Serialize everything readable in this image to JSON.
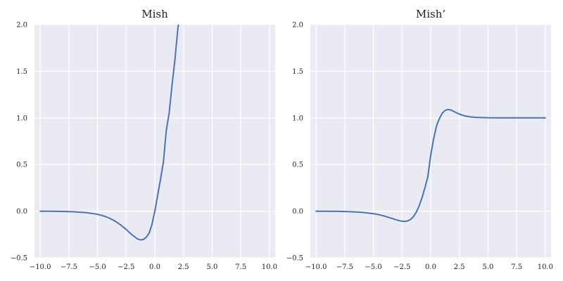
{
  "chart_data": [
    {
      "type": "line",
      "title": "Mish",
      "xlabel": "",
      "ylabel": "",
      "xlim": [
        -10.5,
        10.5
      ],
      "ylim": [
        -0.5,
        2.0
      ],
      "grid": true,
      "x_ticks": [
        -10.0,
        -7.5,
        -5.0,
        -2.5,
        0.0,
        2.5,
        5.0,
        7.5,
        10.0
      ],
      "x_tick_labels": [
        "−10.0",
        "−7.5",
        "−5.0",
        "−2.5",
        "0.0",
        "2.5",
        "5.0",
        "7.5",
        "10.0"
      ],
      "y_ticks": [
        -0.5,
        0.0,
        0.5,
        1.0,
        1.5,
        2.0
      ],
      "y_tick_labels": [
        "−0.5",
        "0.0",
        "0.5",
        "1.0",
        "1.5",
        "2.0"
      ],
      "series": [
        {
          "color": "#4c72b0",
          "x": [
            -10,
            -9,
            -8,
            -7,
            -6,
            -5,
            -4.5,
            -4,
            -3.5,
            -3,
            -2.5,
            -2,
            -1.5,
            -1.25,
            -1,
            -0.75,
            -0.5,
            -0.25,
            0,
            0.25,
            0.5,
            0.75,
            1,
            1.25,
            1.5,
            1.75,
            2,
            2.25
          ],
          "y": [
            -0.0005,
            -0.0011,
            -0.0027,
            -0.0064,
            -0.0149,
            -0.0336,
            -0.0497,
            -0.0727,
            -0.1043,
            -0.1456,
            -0.1955,
            -0.2525,
            -0.298,
            -0.3076,
            -0.3034,
            -0.2793,
            -0.2361,
            -0.1426,
            0.0,
            0.1715,
            0.3442,
            0.5276,
            0.8651,
            1.0506,
            1.35,
            1.618,
            1.944,
            2.191
          ]
        }
      ]
    },
    {
      "type": "line",
      "title": "Mish’",
      "xlabel": "",
      "ylabel": "",
      "xlim": [
        -10.5,
        10.5
      ],
      "ylim": [
        -0.5,
        2.0
      ],
      "grid": true,
      "x_ticks": [
        -10.0,
        -7.5,
        -5.0,
        -2.5,
        0.0,
        2.5,
        5.0,
        7.5,
        10.0
      ],
      "x_tick_labels": [
        "−10.0",
        "−7.5",
        "−5.0",
        "−2.5",
        "0.0",
        "2.5",
        "5.0",
        "7.5",
        "10.0"
      ],
      "y_ticks": [
        -0.5,
        0.0,
        0.5,
        1.0,
        1.5,
        2.0
      ],
      "y_tick_labels": [
        "−0.5",
        "0.0",
        "0.5",
        "1.0",
        "1.5",
        "2.0"
      ],
      "series": [
        {
          "color": "#4c72b0",
          "x": [
            -10,
            -9,
            -8,
            -7,
            -6,
            -5,
            -4.5,
            -4,
            -3.5,
            -3,
            -2.75,
            -2.5,
            -2.25,
            -2,
            -1.75,
            -1.5,
            -1.25,
            -1,
            -0.75,
            -0.5,
            -0.25,
            0,
            0.25,
            0.5,
            0.75,
            1,
            1.25,
            1.5,
            1.75,
            2,
            2.5,
            3,
            3.5,
            4,
            5,
            6,
            7,
            8,
            9,
            10
          ],
          "y": [
            -0.0004,
            -0.001,
            -0.0023,
            -0.0054,
            -0.0122,
            -0.0266,
            -0.0383,
            -0.054,
            -0.073,
            -0.0929,
            -0.1014,
            -0.1078,
            -0.1097,
            -0.1043,
            -0.0881,
            -0.0575,
            -0.0092,
            0.059,
            0.147,
            0.252,
            0.37,
            0.6,
            0.77,
            0.91,
            0.99,
            1.049,
            1.08,
            1.09,
            1.085,
            1.07,
            1.04,
            1.02,
            1.01,
            1.005,
            1.001,
            1.0002,
            1.0,
            1.0,
            1.0,
            1.0
          ]
        }
      ]
    }
  ]
}
